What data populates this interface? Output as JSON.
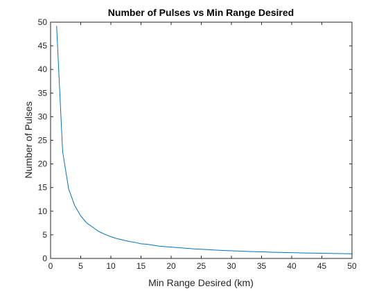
{
  "chart_data": {
    "type": "line",
    "title": "Number of Pulses vs Min Range Desired",
    "xlabel": "Min Range Desired (km)",
    "ylabel": "Number of Pulses",
    "xlim": [
      0,
      50
    ],
    "ylim": [
      0,
      50
    ],
    "xticks": [
      "0",
      "5",
      "10",
      "15",
      "20",
      "25",
      "30",
      "35",
      "40",
      "45",
      "50"
    ],
    "yticks": [
      "0",
      "5",
      "10",
      "15",
      "20",
      "25",
      "30",
      "35",
      "40",
      "45",
      "50"
    ],
    "grid": false,
    "box": true,
    "series": [
      {
        "color": "#0072bd",
        "x": [
          1,
          2,
          3,
          4,
          5,
          6,
          7,
          8,
          9,
          10,
          11,
          12,
          13,
          14,
          15,
          16,
          17,
          18,
          19,
          20,
          21,
          22,
          23,
          24,
          25,
          26,
          27,
          28,
          29,
          30,
          31,
          32,
          33,
          34,
          35,
          36,
          37,
          38,
          39,
          40,
          41,
          42,
          43,
          44,
          45,
          46,
          47,
          48,
          49,
          50
        ],
        "y": [
          49.2,
          22.6,
          14.7,
          11.2,
          9.0,
          7.5,
          6.6,
          5.7,
          5.1,
          4.6,
          4.2,
          3.9,
          3.6,
          3.4,
          3.1,
          3.0,
          2.8,
          2.6,
          2.5,
          2.4,
          2.3,
          2.2,
          2.1,
          2.0,
          1.95,
          1.87,
          1.8,
          1.73,
          1.67,
          1.62,
          1.57,
          1.52,
          1.47,
          1.43,
          1.39,
          1.35,
          1.31,
          1.28,
          1.25,
          1.22,
          1.19,
          1.16,
          1.13,
          1.11,
          1.08,
          1.06,
          1.04,
          1.02,
          1.0,
          0.98
        ]
      }
    ]
  }
}
